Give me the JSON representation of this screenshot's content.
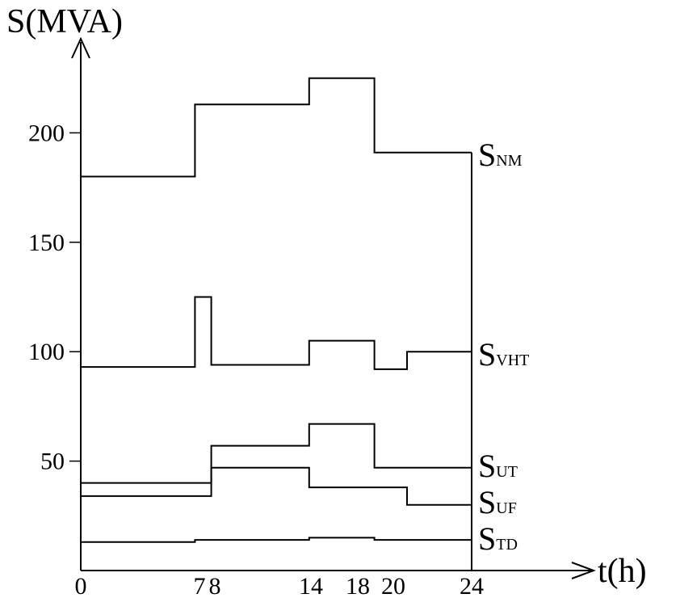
{
  "chart_data": {
    "type": "line",
    "step": true,
    "xlabel": "t(h)",
    "ylabel": "S(MVA)",
    "xlim": [
      0,
      24
    ],
    "ylim": [
      0,
      220
    ],
    "x_ticks": [
      0,
      7,
      8,
      14,
      18,
      20,
      24
    ],
    "x_tick_labels": [
      "0",
      "7",
      "8",
      "14",
      "18",
      "20",
      "24"
    ],
    "y_ticks": [
      50,
      100,
      150,
      200
    ],
    "y_tick_labels": [
      "50",
      "100",
      "150",
      "200"
    ],
    "grid": false,
    "legend": "series names at right end of lines",
    "series": [
      {
        "name": "NM",
        "label_main": "S",
        "label_sub": "NM",
        "x": [
          0,
          7,
          14,
          18,
          24
        ],
        "values": [
          180,
          213,
          225,
          191,
          191
        ]
      },
      {
        "name": "VHT",
        "label_main": "S",
        "label_sub": "VHT",
        "x": [
          0,
          7,
          8,
          14,
          18,
          20,
          24
        ],
        "values": [
          93,
          125,
          94,
          105,
          92,
          100,
          100
        ]
      },
      {
        "name": "UT",
        "label_main": "S",
        "label_sub": "UT",
        "x": [
          0,
          8,
          14,
          18,
          24
        ],
        "values": [
          40,
          57,
          67,
          47,
          47
        ]
      },
      {
        "name": "UF",
        "label_main": "S",
        "label_sub": "UF",
        "x": [
          0,
          8,
          14,
          20,
          24
        ],
        "values": [
          34,
          47,
          38,
          30,
          30
        ]
      },
      {
        "name": "TD",
        "label_main": "S",
        "label_sub": "TD",
        "x": [
          0,
          7,
          14,
          18,
          24
        ],
        "values": [
          13,
          14,
          15,
          14,
          14
        ]
      }
    ]
  }
}
